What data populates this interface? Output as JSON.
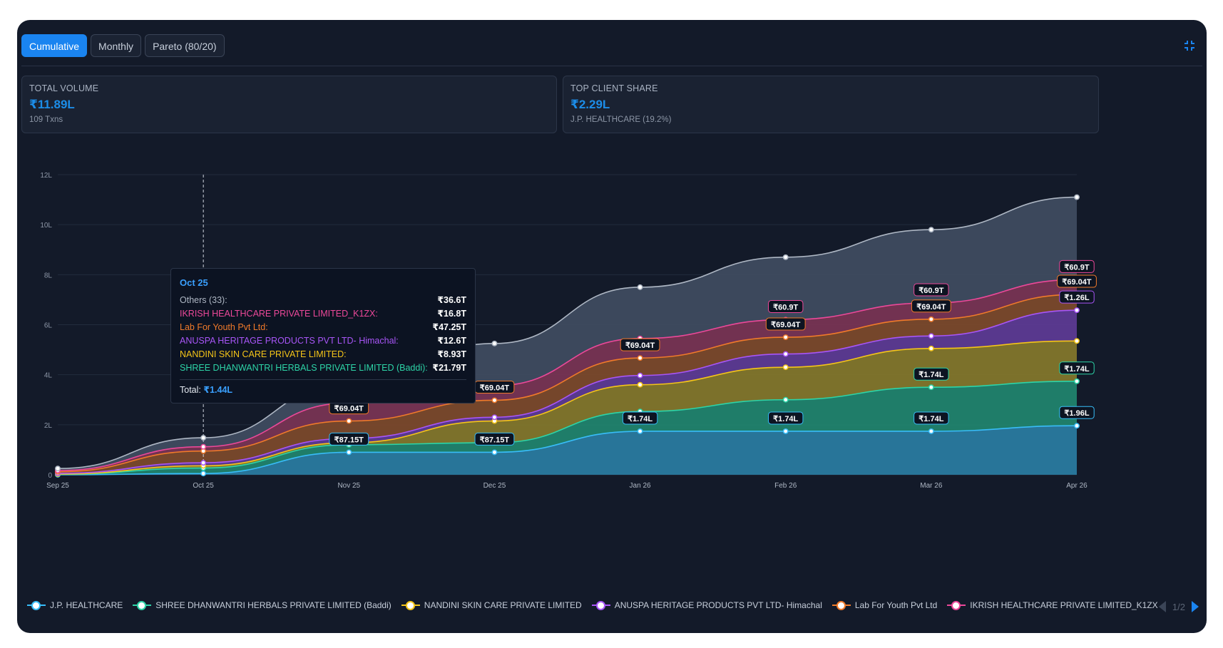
{
  "tabs": [
    {
      "label": "Cumulative",
      "active": true
    },
    {
      "label": "Monthly",
      "active": false
    },
    {
      "label": "Pareto (80/20)",
      "active": false
    }
  ],
  "cards": [
    {
      "label": "TOTAL VOLUME",
      "value": "₹11.89L",
      "sub": "109 Txns"
    },
    {
      "label": "TOP CLIENT SHARE",
      "value": "₹2.29L",
      "sub": "J.P. HEALTHCARE (19.2%)"
    }
  ],
  "tooltip": {
    "title": "Oct 25",
    "rows": [
      {
        "label": "Others (33):",
        "value": "₹36.6T",
        "color": "#aeb7c4"
      },
      {
        "label": "IKRISH HEALTHCARE PRIVATE LIMITED_K1ZX:",
        "value": "₹16.8T",
        "color": "#ec4899"
      },
      {
        "label": "Lab For Youth Pvt Ltd:",
        "value": "₹47.25T",
        "color": "#f07a2a"
      },
      {
        "label": "ANUSPA HERITAGE PRODUCTS PVT LTD- Himachal:",
        "value": "₹12.6T",
        "color": "#a855f7"
      },
      {
        "label": "NANDINI SKIN CARE PRIVATE LIMITED:",
        "value": "₹8.93T",
        "color": "#f5c518"
      },
      {
        "label": "SHREE DHANWANTRI HERBALS PRIVATE LIMITED (Baddi):",
        "value": "₹21.79T",
        "color": "#2dd4a7"
      }
    ],
    "total_label": "Total:",
    "total_value": "₹1.44L"
  },
  "legend_pager": {
    "page_text": "1/2"
  },
  "chart_data": {
    "type": "area",
    "stacked": true,
    "x": [
      "Sep 25",
      "Oct 25",
      "Nov 25",
      "Dec 25",
      "Jan 26",
      "Feb 26",
      "Mar 26",
      "Apr 26"
    ],
    "y_ticks": [
      "0",
      "2L",
      "4L",
      "6L",
      "8L",
      "10L",
      "12L"
    ],
    "ylim": [
      0,
      12
    ],
    "grid": true,
    "legend_position": "bottom",
    "series": [
      {
        "name": "J.P. HEALTHCARE",
        "color": "#38bdf8",
        "fill": "#2a7da3",
        "cumulative": [
          0.0,
          0.05,
          0.9,
          0.9,
          1.74,
          1.74,
          1.74,
          1.96
        ]
      },
      {
        "name": "SHREE DHANWANTRI HERBALS PRIVATE LIMITED (Baddi)",
        "color": "#2dd4a7",
        "fill": "#21856f",
        "cumulative": [
          0.02,
          0.27,
          1.2,
          1.28,
          2.53,
          3.0,
          3.5,
          3.74
        ]
      },
      {
        "name": "NANDINI SKIN CARE PRIVATE LIMITED",
        "color": "#f5c518",
        "fill": "#85782b",
        "cumulative": [
          0.03,
          0.36,
          1.28,
          2.15,
          3.6,
          4.3,
          5.05,
          5.35
        ]
      },
      {
        "name": "ANUSPA HERITAGE PRODUCTS PVT LTD- Himachal",
        "color": "#a855f7",
        "fill": "#5e3b96",
        "cumulative": [
          0.06,
          0.48,
          1.45,
          2.3,
          3.97,
          4.83,
          5.55,
          6.58
        ]
      },
      {
        "name": "Lab For Youth Pvt Ltd",
        "color": "#f07a2a",
        "fill": "#7e4a2b",
        "cumulative": [
          0.12,
          0.95,
          2.15,
          2.98,
          4.67,
          5.5,
          6.22,
          7.21
        ]
      },
      {
        "name": "IKRISH HEALTHCARE PRIVATE LIMITED_K1ZX",
        "color": "#ec4899",
        "fill": "#7b3455",
        "cumulative": [
          0.17,
          1.12,
          2.87,
          3.56,
          5.45,
          6.2,
          6.87,
          7.8
        ]
      },
      {
        "name": "Others",
        "color": "#aeb7c4",
        "fill": "#404c61",
        "cumulative": [
          0.25,
          1.48,
          3.67,
          5.25,
          7.5,
          8.7,
          9.8,
          11.1
        ]
      }
    ],
    "data_labels": [
      {
        "series": 0,
        "x": 2,
        "text": "₹87.15T"
      },
      {
        "series": 0,
        "x": 3,
        "text": "₹87.15T"
      },
      {
        "series": 0,
        "x": 4,
        "text": "₹1.74L"
      },
      {
        "series": 0,
        "x": 5,
        "text": "₹1.74L"
      },
      {
        "series": 0,
        "x": 6,
        "text": "₹1.74L"
      },
      {
        "series": 0,
        "x": 7,
        "text": "₹1.96L"
      },
      {
        "series": 1,
        "x": 6,
        "text": "₹1.74L"
      },
      {
        "series": 1,
        "x": 7,
        "text": "₹1.74L"
      },
      {
        "series": 3,
        "x": 7,
        "text": "₹1.26L"
      },
      {
        "series": 4,
        "x": 2,
        "text": "₹69.04T"
      },
      {
        "series": 4,
        "x": 3,
        "text": "₹69.04T"
      },
      {
        "series": 4,
        "x": 4,
        "text": "₹69.04T"
      },
      {
        "series": 4,
        "x": 5,
        "text": "₹69.04T"
      },
      {
        "series": 4,
        "x": 6,
        "text": "₹69.04T"
      },
      {
        "series": 4,
        "x": 7,
        "text": "₹69.04T"
      },
      {
        "series": 5,
        "x": 5,
        "text": "₹60.9T"
      },
      {
        "series": 5,
        "x": 6,
        "text": "₹60.9T"
      },
      {
        "series": 5,
        "x": 7,
        "text": "₹60.9T"
      }
    ],
    "hover_index": 1
  }
}
